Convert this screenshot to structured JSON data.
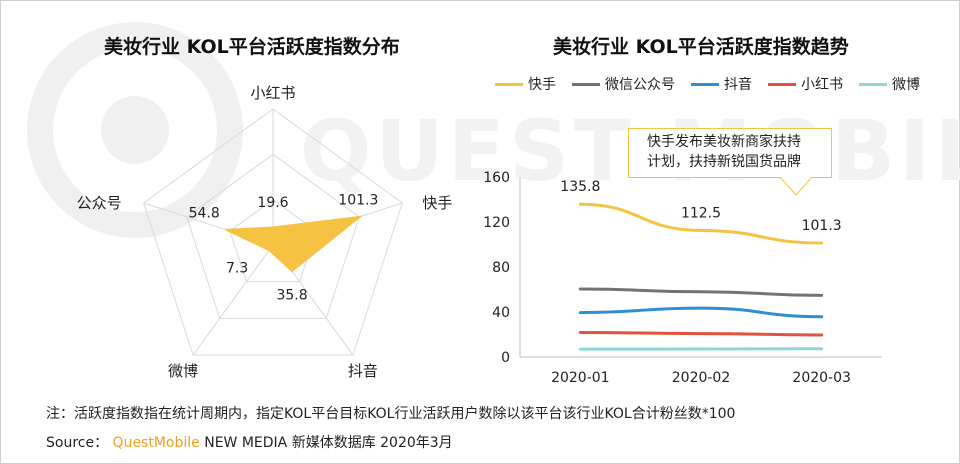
{
  "colors": {
    "kuaishou": "#f5c242",
    "wechat": "#737373",
    "douyin": "#2e8fd0",
    "xiaohongshu": "#e2523d",
    "weibo": "#8fd6d6",
    "grid": "#d9d9d9",
    "watermark": "#f0f0f0"
  },
  "watermark": "QUEST MOBILE",
  "chart_data": [
    {
      "type": "radar",
      "title": "美妆行业 KOL平台活跃度指数分布",
      "axes": [
        "小红书",
        "快手",
        "抖音",
        "微博",
        "公众号"
      ],
      "values": [
        19.6,
        101.3,
        35.8,
        7.3,
        54.8
      ],
      "value_labels": [
        "19.6",
        "101.3",
        "35.8",
        "7.3",
        "54.8"
      ],
      "rmax": 150
    },
    {
      "type": "line",
      "title": "美妆行业 KOL平台活跃度指数趋势",
      "categories": [
        "2020-01",
        "2020-02",
        "2020-03"
      ],
      "ylim": [
        0,
        160
      ],
      "yticks": [
        0,
        40,
        80,
        120,
        160
      ],
      "grid": false,
      "legend": "top",
      "series": [
        {
          "name": "快手",
          "key": "kuaishou",
          "values": [
            135.8,
            112.5,
            101.3
          ],
          "labels": [
            "135.8",
            "112.5",
            "101.3"
          ]
        },
        {
          "name": "微信公众号",
          "key": "wechat",
          "values": [
            60.5,
            58.0,
            54.8
          ],
          "labels": []
        },
        {
          "name": "抖音",
          "key": "douyin",
          "values": [
            39.5,
            43.5,
            35.8
          ],
          "labels": []
        },
        {
          "name": "小红书",
          "key": "xiaohongshu",
          "values": [
            21.8,
            20.8,
            19.6
          ],
          "labels": []
        },
        {
          "name": "微博",
          "key": "weibo",
          "values": [
            7.0,
            7.1,
            7.3
          ],
          "labels": []
        }
      ],
      "annotation": [
        "快手发布美妆新商家扶持",
        "计划，扶持新锐国货品牌"
      ]
    }
  ],
  "footer": {
    "note": "注：活跃度指数指在统计周期内，指定KOL平台目标KOL行业活跃用户数除以该平台该行业KOL合计粉丝数*100",
    "source_prefix": "Source：",
    "source_brand": "QuestMobile",
    "source_suffix": "NEW MEDIA 新媒体数据库 2020年3月"
  }
}
